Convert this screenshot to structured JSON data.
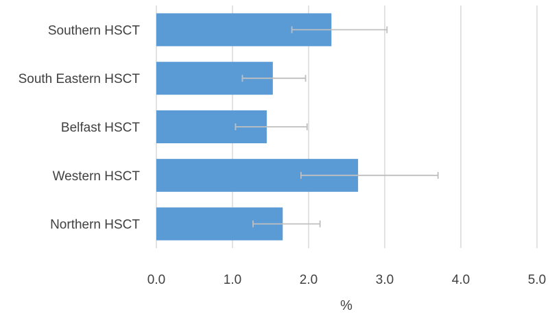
{
  "chart_data": {
    "type": "bar",
    "orientation": "horizontal",
    "title": "",
    "xlabel": "%",
    "ylabel": "",
    "categories": [
      "Southern HSCT",
      "South Eastern HSCT",
      "Belfast HSCT",
      "Western HSCT",
      "Northern HSCT"
    ],
    "values": [
      2.3,
      1.53,
      1.45,
      2.65,
      1.66
    ],
    "error_low": [
      1.78,
      1.13,
      1.04,
      1.9,
      1.27
    ],
    "error_high": [
      3.03,
      1.96,
      1.98,
      3.7,
      2.15
    ],
    "xlim": [
      0,
      5
    ],
    "xticks": [
      "0.0",
      "1.0",
      "2.0",
      "3.0",
      "4.0",
      "5.0"
    ],
    "grid": true,
    "legend": "none",
    "colors": {
      "bar": "#5b9bd5",
      "error_bar": "#bfbfbf",
      "grid": "#d9d9d9"
    }
  }
}
